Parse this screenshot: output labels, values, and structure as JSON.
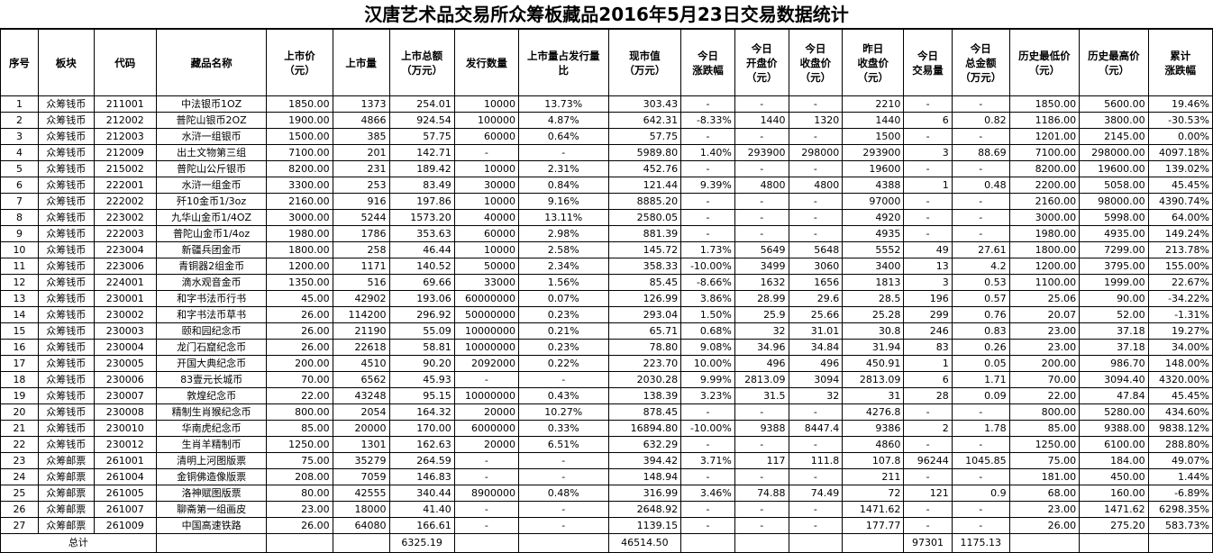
{
  "title": "汉唐艺术品交易所众筹板藏品2016年5月23日交易数据统计",
  "headers": [
    "序号",
    "板块",
    "代码",
    "藏品名称",
    "上市价\n（元）",
    "上市量",
    "上市总额\n（万元）",
    "发行数量",
    "上市量占发行量\n比",
    "现市值\n（万元）",
    "今日\n涨跌幅",
    "今日\n开盘价\n（元）",
    "今日\n收盘价\n（元）",
    "昨日\n收盘价\n（元）",
    "今日\n交易量",
    "今日\n总金额\n（万元）",
    "历史最低价\n（元）",
    "历史最高价\n（元）",
    "累计\n涨跌幅"
  ],
  "rows": [
    [
      "1",
      "众筹钱币",
      "211001",
      "中法银币1OZ",
      "1850.00",
      "1373",
      "254.01",
      "10000",
      "13.73%",
      "303.43",
      "-",
      "-",
      "-",
      "2210",
      "-",
      "-",
      "1850.00",
      "5600.00",
      "19.46%"
    ],
    [
      "2",
      "众筹钱币",
      "212002",
      "普陀山银币2OZ",
      "1900.00",
      "4866",
      "924.54",
      "100000",
      "4.87%",
      "642.31",
      "-8.33%",
      "1440",
      "1320",
      "1440",
      "6",
      "0.82",
      "1186.00",
      "3800.00",
      "-30.53%"
    ],
    [
      "3",
      "众筹钱币",
      "212003",
      "水浒一组银币",
      "1500.00",
      "385",
      "57.75",
      "60000",
      "0.64%",
      "57.75",
      "-",
      "-",
      "-",
      "1500",
      "-",
      "-",
      "1201.00",
      "2145.00",
      "0.00%"
    ],
    [
      "4",
      "众筹钱币",
      "212009",
      "出土文物第三组",
      "7100.00",
      "201",
      "142.71",
      "-",
      "-",
      "5989.80",
      "1.40%",
      "293900",
      "298000",
      "293900",
      "3",
      "88.69",
      "7100.00",
      "298000.00",
      "4097.18%"
    ],
    [
      "5",
      "众筹钱币",
      "215002",
      "普陀山公斤银币",
      "8200.00",
      "231",
      "189.42",
      "10000",
      "2.31%",
      "452.76",
      "-",
      "-",
      "-",
      "19600",
      "-",
      "-",
      "8200.00",
      "19600.00",
      "139.02%"
    ],
    [
      "6",
      "众筹钱币",
      "222001",
      "水浒一组金币",
      "3300.00",
      "253",
      "83.49",
      "30000",
      "0.84%",
      "121.44",
      "9.39%",
      "4800",
      "4800",
      "4388",
      "1",
      "0.48",
      "2200.00",
      "5058.00",
      "45.45%"
    ],
    [
      "7",
      "众筹钱币",
      "222002",
      "歼10金币1/3oz",
      "2160.00",
      "916",
      "197.86",
      "10000",
      "9.16%",
      "8885.20",
      "-",
      "-",
      "-",
      "97000",
      "-",
      "-",
      "2160.00",
      "98000.00",
      "4390.74%"
    ],
    [
      "8",
      "众筹钱币",
      "223002",
      "九华山金币1/4OZ",
      "3000.00",
      "5244",
      "1573.20",
      "40000",
      "13.11%",
      "2580.05",
      "-",
      "-",
      "-",
      "4920",
      "-",
      "-",
      "3000.00",
      "5998.00",
      "64.00%"
    ],
    [
      "9",
      "众筹钱币",
      "222003",
      "普陀山金币1/4oz",
      "1980.00",
      "1786",
      "353.63",
      "60000",
      "2.98%",
      "881.39",
      "-",
      "-",
      "-",
      "4935",
      "-",
      "-",
      "1980.00",
      "4935.00",
      "149.24%"
    ],
    [
      "10",
      "众筹钱币",
      "223004",
      "新疆兵团金币",
      "1800.00",
      "258",
      "46.44",
      "10000",
      "2.58%",
      "145.72",
      "1.73%",
      "5649",
      "5648",
      "5552",
      "49",
      "27.61",
      "1800.00",
      "7299.00",
      "213.78%"
    ],
    [
      "11",
      "众筹钱币",
      "223006",
      "青铜器2组金币",
      "1200.00",
      "1171",
      "140.52",
      "50000",
      "2.34%",
      "358.33",
      "-10.00%",
      "3499",
      "3060",
      "3400",
      "13",
      "4.2",
      "1200.00",
      "3795.00",
      "155.00%"
    ],
    [
      "12",
      "众筹钱币",
      "224001",
      "滴水观音金币",
      "1350.00",
      "516",
      "69.66",
      "33000",
      "1.56%",
      "85.45",
      "-8.66%",
      "1632",
      "1656",
      "1813",
      "3",
      "0.53",
      "1100.00",
      "1999.00",
      "22.67%"
    ],
    [
      "13",
      "众筹钱币",
      "230001",
      "和字书法币行书",
      "45.00",
      "42902",
      "193.06",
      "60000000",
      "0.07%",
      "126.99",
      "3.86%",
      "28.99",
      "29.6",
      "28.5",
      "196",
      "0.57",
      "25.06",
      "90.00",
      "-34.22%"
    ],
    [
      "14",
      "众筹钱币",
      "230002",
      "和字书法币草书",
      "26.00",
      "114200",
      "296.92",
      "50000000",
      "0.23%",
      "293.04",
      "1.50%",
      "25.9",
      "25.66",
      "25.28",
      "299",
      "0.76",
      "20.07",
      "52.00",
      "-1.31%"
    ],
    [
      "15",
      "众筹钱币",
      "230003",
      "颐和园纪念币",
      "26.00",
      "21190",
      "55.09",
      "10000000",
      "0.21%",
      "65.71",
      "0.68%",
      "32",
      "31.01",
      "30.8",
      "246",
      "0.83",
      "23.00",
      "37.18",
      "19.27%"
    ],
    [
      "16",
      "众筹钱币",
      "230004",
      "龙门石窟纪念币",
      "26.00",
      "22618",
      "58.81",
      "10000000",
      "0.23%",
      "78.80",
      "9.08%",
      "34.96",
      "34.84",
      "31.94",
      "83",
      "0.26",
      "23.00",
      "37.18",
      "34.00%"
    ],
    [
      "17",
      "众筹钱币",
      "230005",
      "开国大典纪念币",
      "200.00",
      "4510",
      "90.20",
      "2092000",
      "0.22%",
      "223.70",
      "10.00%",
      "496",
      "496",
      "450.91",
      "1",
      "0.05",
      "200.00",
      "986.70",
      "148.00%"
    ],
    [
      "18",
      "众筹钱币",
      "230006",
      "83壹元长城币",
      "70.00",
      "6562",
      "45.93",
      "-",
      "-",
      "2030.28",
      "9.99%",
      "2813.09",
      "3094",
      "2813.09",
      "6",
      "1.71",
      "70.00",
      "3094.40",
      "4320.00%"
    ],
    [
      "19",
      "众筹钱币",
      "230007",
      "敦煌纪念币",
      "22.00",
      "43248",
      "95.15",
      "10000000",
      "0.43%",
      "138.39",
      "3.23%",
      "31.5",
      "32",
      "31",
      "28",
      "0.09",
      "22.00",
      "47.84",
      "45.45%"
    ],
    [
      "20",
      "众筹钱币",
      "230008",
      "精制生肖猴纪念币",
      "800.00",
      "2054",
      "164.32",
      "20000",
      "10.27%",
      "878.45",
      "-",
      "-",
      "-",
      "4276.8",
      "-",
      "-",
      "800.00",
      "5280.00",
      "434.60%"
    ],
    [
      "21",
      "众筹钱币",
      "230010",
      "华南虎纪念币",
      "85.00",
      "20000",
      "170.00",
      "6000000",
      "0.33%",
      "16894.80",
      "-10.00%",
      "9388",
      "8447.4",
      "9386",
      "2",
      "1.78",
      "85.00",
      "9388.00",
      "9838.12%"
    ],
    [
      "22",
      "众筹钱币",
      "230012",
      "生肖羊精制币",
      "1250.00",
      "1301",
      "162.63",
      "20000",
      "6.51%",
      "632.29",
      "-",
      "-",
      "-",
      "4860",
      "-",
      "-",
      "1250.00",
      "6100.00",
      "288.80%"
    ],
    [
      "23",
      "众筹邮票",
      "261001",
      "清明上河图版票",
      "75.00",
      "35279",
      "264.59",
      "-",
      "-",
      "394.42",
      "3.71%",
      "117",
      "111.8",
      "107.8",
      "96244",
      "1045.85",
      "75.00",
      "184.00",
      "49.07%"
    ],
    [
      "24",
      "众筹邮票",
      "261004",
      "金铜佛造像版票",
      "208.00",
      "7059",
      "146.83",
      "-",
      "-",
      "148.94",
      "-",
      "-",
      "-",
      "211",
      "-",
      "-",
      "181.00",
      "450.00",
      "1.44%"
    ],
    [
      "25",
      "众筹邮票",
      "261005",
      "洛神赋图版票",
      "80.00",
      "42555",
      "340.44",
      "8900000",
      "0.48%",
      "316.99",
      "3.46%",
      "74.88",
      "74.49",
      "72",
      "121",
      "0.9",
      "68.00",
      "160.00",
      "-6.89%"
    ],
    [
      "26",
      "众筹邮票",
      "261007",
      "聊斋第一组画皮",
      "23.00",
      "18000",
      "41.40",
      "-",
      "-",
      "2648.92",
      "-",
      "-",
      "-",
      "1471.62",
      "-",
      "-",
      "23.00",
      "1471.62",
      "6298.35%"
    ],
    [
      "27",
      "众筹邮票",
      "261009",
      "中国高速铁路",
      "26.00",
      "64080",
      "166.61",
      "-",
      "-",
      "1139.15",
      "-",
      "-",
      "-",
      "177.77",
      "-",
      "-",
      "26.00",
      "275.20",
      "583.73%"
    ]
  ],
  "total": {
    "label": "总计",
    "list_total_amount": "6325.19",
    "market_value": "46514.50",
    "volume": "97301",
    "amount": "1175.13"
  }
}
